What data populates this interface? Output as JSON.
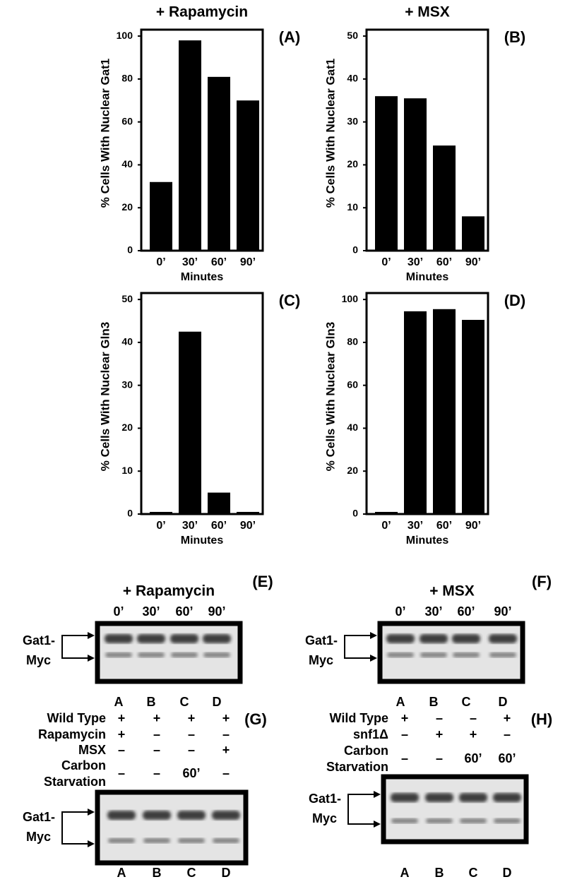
{
  "chart_data": [
    {
      "type": "bar",
      "title": "+ Rapamycin",
      "panel_label": "(A)",
      "ylabel": "% Cells With Nuclear Gat1",
      "xlabel": "Minutes",
      "categories": [
        "0’",
        "30’",
        "60’",
        "90’"
      ],
      "values": [
        32,
        98,
        81,
        70
      ],
      "color": "#000000",
      "ylim": [
        0,
        103
      ],
      "yticks": [
        0,
        20,
        40,
        60,
        80,
        100
      ]
    },
    {
      "type": "bar",
      "title": "+ MSX",
      "panel_label": "(B)",
      "ylabel": "% Cells With Nuclear Gat1",
      "xlabel": "Minutes",
      "categories": [
        "0’",
        "30’",
        "60’",
        "90’"
      ],
      "values": [
        36,
        35.5,
        24.5,
        8
      ],
      "color": "#000000",
      "ylim": [
        0,
        51.5
      ],
      "yticks": [
        0,
        10,
        20,
        30,
        40,
        50
      ]
    },
    {
      "type": "bar",
      "panel_label": "(C)",
      "ylabel": "% Cells With Nuclear Gln3",
      "xlabel": "Minutes",
      "categories": [
        "0’",
        "30’",
        "60’",
        "90’"
      ],
      "values": [
        0.5,
        42.5,
        5,
        0.5
      ],
      "color": "#000000",
      "ylim": [
        0,
        51.5
      ],
      "yticks": [
        0,
        10,
        20,
        30,
        40,
        50
      ]
    },
    {
      "type": "bar",
      "panel_label": "(D)",
      "ylabel": "% Cells With Nuclear Gln3",
      "xlabel": "Minutes",
      "categories": [
        "0’",
        "30’",
        "60’",
        "90’"
      ],
      "values": [
        1,
        94.5,
        95.5,
        90.5
      ],
      "color": "#000000",
      "ylim": [
        0,
        103
      ],
      "yticks": [
        0,
        20,
        40,
        60,
        80,
        100
      ]
    }
  ],
  "blots": [
    {
      "title": "+ Rapamycin",
      "panel_label": "(E)",
      "times": [
        "0’",
        "30’",
        "60’",
        "90’"
      ],
      "marker": [
        "Gat1-",
        "Myc"
      ],
      "lanes": [
        "A",
        "B",
        "C",
        "D"
      ]
    },
    {
      "title": "+ MSX",
      "panel_label": "(F)",
      "times": [
        "0’",
        "30’",
        "60’",
        "90’"
      ],
      "marker": [
        "Gat1-",
        "Myc"
      ],
      "lanes": [
        "A",
        "B",
        "C",
        "D"
      ]
    },
    {
      "panel_label": "(G)",
      "conditions": [
        {
          "label": [
            "Wild Type"
          ],
          "values": [
            "+",
            "+",
            "+",
            "+"
          ]
        },
        {
          "label": [
            "Rapamycin"
          ],
          "values": [
            "+",
            "–",
            "–",
            "–"
          ]
        },
        {
          "label": [
            "MSX"
          ],
          "values": [
            "–",
            "–",
            "–",
            "+"
          ]
        },
        {
          "label": [
            "Carbon",
            "Starvation"
          ],
          "values": [
            "–",
            "–",
            "60’",
            "–"
          ]
        }
      ],
      "marker": [
        "Gat1-",
        "Myc"
      ],
      "lanes": [
        "A",
        "B",
        "C",
        "D"
      ]
    },
    {
      "panel_label": "(H)",
      "conditions": [
        {
          "label": [
            "Wild Type"
          ],
          "values": [
            "+",
            "–",
            "–",
            "+"
          ]
        },
        {
          "label": [
            "snf1Δ"
          ],
          "values": [
            "–",
            "+",
            "+",
            "–"
          ]
        },
        {
          "label": [
            "Carbon",
            "Starvation"
          ],
          "values": [
            "–",
            "–",
            "60’",
            "60’"
          ]
        }
      ],
      "marker": [
        "Gat1-",
        "Myc"
      ],
      "lanes": [
        "A",
        "B",
        "C",
        "D"
      ]
    }
  ]
}
